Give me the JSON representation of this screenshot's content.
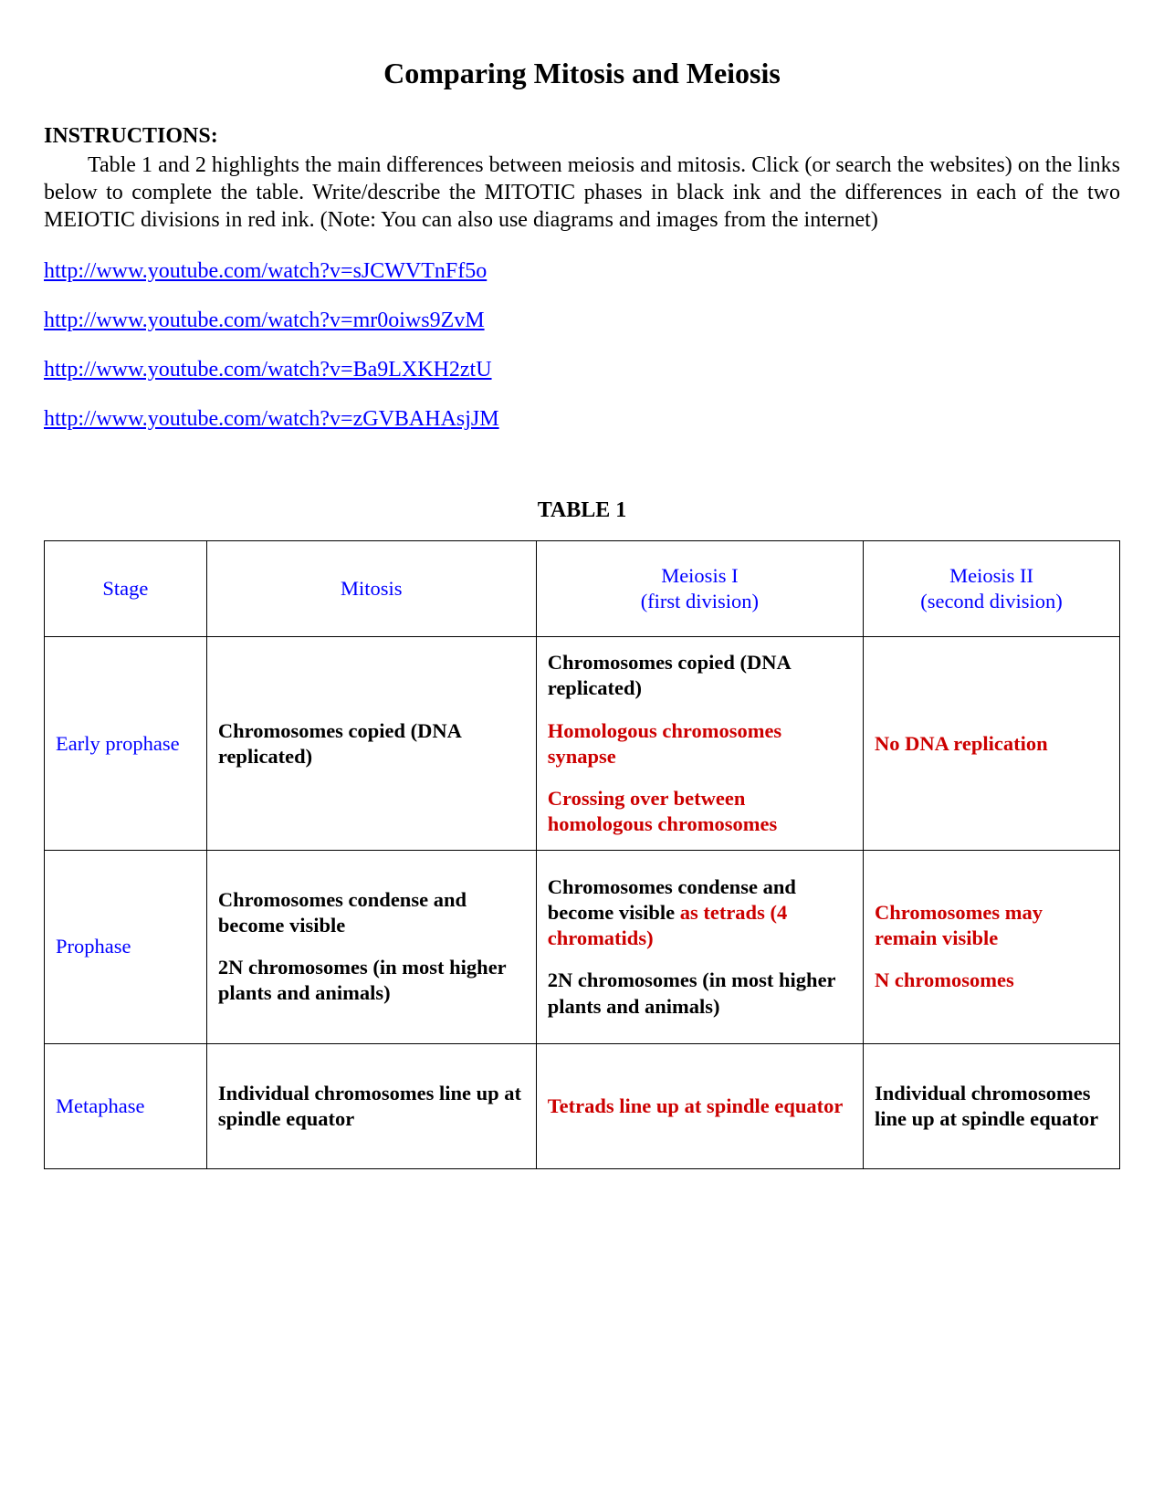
{
  "title": "Comparing Mitosis and Meiosis",
  "instructions_heading": "INSTRUCTIONS:",
  "instructions_body": "Table 1 and 2 highlights the main differences between meiosis and mitosis. Click (or search the websites) on the links below to complete the table. Write/describe the MITOTIC phases in black ink and the differences in each of the two MEIOTIC divisions in red ink. (Note: You can also use diagrams and images from the internet)",
  "links": [
    "http://www.youtube.com/watch?v=sJCWVTnFf5o",
    "http://www.youtube.com/watch?v=mr0oiws9ZvM",
    "http://www.youtube.com/watch?v=Ba9LXKH2ztU",
    "http://www.youtube.com/watch?v=zGVBAHAsjJM"
  ],
  "table_label": "TABLE 1",
  "headers": {
    "stage": "Stage",
    "mitosis": "Mitosis",
    "meiosis1_line1": "Meiosis I",
    "meiosis1_line2": "(first division)",
    "meiosis2_line1": "Meiosis II",
    "meiosis2_line2": "(second division)"
  },
  "rows": {
    "early_prophase": {
      "stage": "Early prophase",
      "mitosis_p1": "Chromosomes copied (DNA replicated)",
      "meiosis1_p1": "Chromosomes copied (DNA replicated)",
      "meiosis1_p2": "Homologous chromosomes synapse",
      "meiosis1_p3": "Crossing over between homologous chromosomes",
      "meiosis2_p1": "No DNA replication"
    },
    "prophase": {
      "stage": "Prophase",
      "mitosis_p1": "Chromosomes condense and become visible",
      "mitosis_p2": "2N chromosomes (in most higher plants and animals)",
      "meiosis1_p1a": "Chromosomes condense and become visible ",
      "meiosis1_p1b": "as tetrads (4 chromatids)",
      "meiosis1_p2": "2N chromosomes (in most higher plants and animals)",
      "meiosis2_p1": "Chromosomes may remain visible",
      "meiosis2_p2": "N chromosomes"
    },
    "metaphase": {
      "stage": "Metaphase",
      "mitosis_p1": "Individual chromosomes line up at spindle equator",
      "meiosis1_p1": "Tetrads line up at spindle equator",
      "meiosis2_p1": "Individual chromosomes line up at spindle equator"
    }
  },
  "colors": {
    "link": "#0000ff",
    "header": "#0000ff",
    "stage": "#0000ff",
    "black": "#000000",
    "red": "#cc0000",
    "background": "#ffffff"
  }
}
